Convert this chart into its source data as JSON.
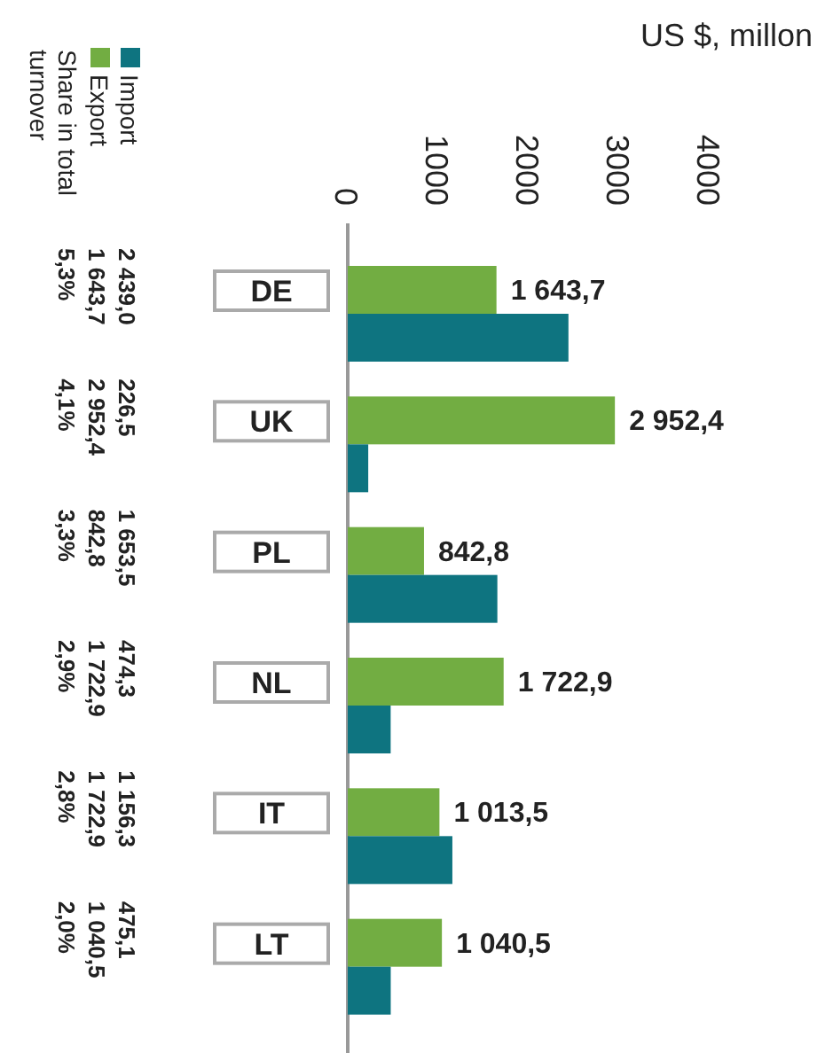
{
  "chart_data": {
    "type": "bar",
    "orientation": "horizontal",
    "xlabel": "US $, millon",
    "categories": [
      "DE",
      "UK",
      "PL",
      "NL",
      "IT",
      "LT"
    ],
    "series": [
      {
        "name": "Export",
        "color": "#72ad42",
        "values": [
          1643.7,
          2952.4,
          842.8,
          1722.9,
          1013.5,
          1040.5
        ],
        "value_labels": [
          "1 643,7",
          "2 952,4",
          "842,8",
          "1 722,9",
          "1 013,5",
          "1 040,5"
        ]
      },
      {
        "name": "Import",
        "color": "#0e7480",
        "values": [
          2439.0,
          226.5,
          1653.5,
          474.3,
          1156.3,
          475.1
        ],
        "value_labels": [
          "2 439,0",
          "226,5",
          "1 653,5",
          "474,3",
          "1 156,3",
          "475,1"
        ]
      }
    ],
    "xlim": [
      0,
      4000
    ],
    "xticks": [
      0,
      1000,
      2000,
      3000,
      4000
    ],
    "grid": false,
    "legend": "top left",
    "annotations": [
      "Share in total turnover",
      "5,3%",
      "4,1%",
      "3,3%",
      "2,9%",
      "2,8%",
      "2,0%",
      "1 643,7",
      "2 952,4",
      "842,8",
      "1 722,9",
      "1 722,9",
      "1 040,5"
    ]
  }
}
